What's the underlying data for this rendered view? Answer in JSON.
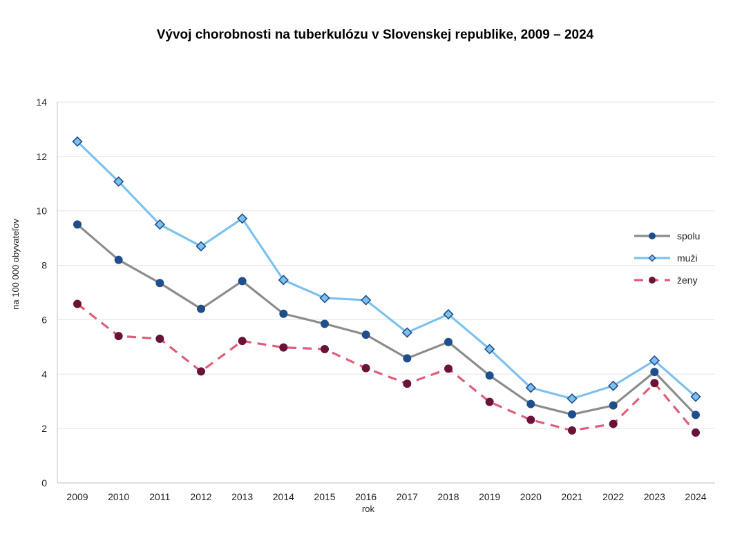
{
  "chart_data": {
    "type": "line",
    "title": "Vývoj chorobnosti na tuberkulózu v Slovenskej republike, 2009 – 2024",
    "xlabel": "rok",
    "ylabel": "na 100 000 obyvateľov",
    "ylim": [
      0,
      14
    ],
    "yticks": [
      0,
      2,
      4,
      6,
      8,
      10,
      12,
      14
    ],
    "grid": true,
    "legend_position": "right",
    "categories": [
      "2009",
      "2010",
      "2011",
      "2012",
      "2013",
      "2014",
      "2015",
      "2016",
      "2017",
      "2018",
      "2019",
      "2020",
      "2021",
      "2022",
      "2023",
      "2024"
    ],
    "series": [
      {
        "name": "spolu",
        "color": "#8c8c8c",
        "marker": "circle",
        "marker_color": "#1f4e8c",
        "dash": false,
        "values": [
          9.5,
          8.2,
          7.35,
          6.4,
          7.42,
          6.22,
          5.85,
          5.45,
          4.58,
          5.18,
          3.95,
          2.9,
          2.52,
          2.85,
          4.08,
          2.5
        ]
      },
      {
        "name": "muži",
        "color": "#7cc1ef",
        "marker": "diamond",
        "marker_color": "#7cc1ef",
        "dash": false,
        "values": [
          12.55,
          11.08,
          9.5,
          8.7,
          9.72,
          7.46,
          6.8,
          6.72,
          5.53,
          6.2,
          4.92,
          3.5,
          3.1,
          3.57,
          4.5,
          3.17
        ]
      },
      {
        "name": "ženy",
        "color": "#e05d7a",
        "marker": "circle",
        "marker_color": "#6a1238",
        "dash": true,
        "values": [
          6.58,
          5.4,
          5.3,
          4.1,
          5.22,
          4.98,
          4.92,
          4.22,
          3.65,
          4.2,
          2.98,
          2.32,
          1.93,
          2.17,
          3.67,
          1.85
        ]
      }
    ]
  }
}
